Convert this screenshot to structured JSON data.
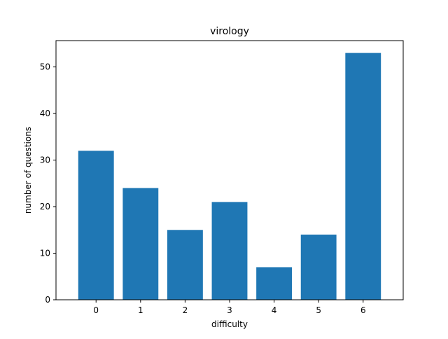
{
  "chart_data": {
    "type": "bar",
    "title": "virology",
    "xlabel": "difficulty",
    "ylabel": "number of questions",
    "categories": [
      "0",
      "1",
      "2",
      "3",
      "4",
      "5",
      "6"
    ],
    "values": [
      32,
      24,
      15,
      21,
      7,
      14,
      53
    ],
    "xlim": [
      -0.9,
      6.9
    ],
    "ylim": [
      0,
      55.65
    ],
    "yticks": [
      0,
      10,
      20,
      30,
      40,
      50
    ],
    "grid": false,
    "legend": "none",
    "bar_color": "#1f77b4"
  }
}
